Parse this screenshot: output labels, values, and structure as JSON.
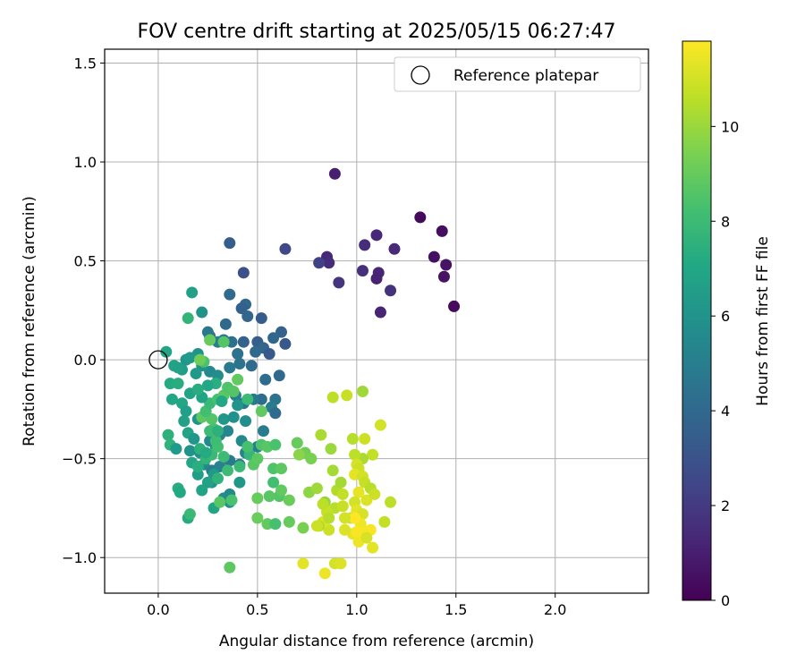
{
  "chart_data": {
    "type": "scatter",
    "title": "FOV centre drift starting at 2025/05/15 06:27:47",
    "xlabel": "Angular distance from reference (arcmin)",
    "ylabel": "Rotation from reference (arcmin)",
    "xlim": [
      -0.27,
      2.47
    ],
    "ylim": [
      -1.18,
      1.57
    ],
    "xticks": [
      0.0,
      0.5,
      1.0,
      1.5,
      2.0
    ],
    "xtick_labels": [
      "0.0",
      "0.5",
      "1.0",
      "1.5",
      "2.0"
    ],
    "yticks": [
      -1.0,
      -0.5,
      0.0,
      0.5,
      1.0,
      1.5
    ],
    "ytick_labels": [
      "−1.0",
      "−0.5",
      "0.0",
      "0.5",
      "1.0",
      "1.5"
    ],
    "grid": true,
    "legend": {
      "placement": "top-right",
      "entries": [
        {
          "label": "Reference platepar",
          "marker": "open-circle",
          "x": 0.0,
          "y": 0.0
        }
      ]
    },
    "colorbar": {
      "label": "Hours from first FF file",
      "colormap": "viridis",
      "range": [
        0,
        11.8
      ],
      "ticks": [
        0,
        2,
        4,
        6,
        8,
        10
      ],
      "tick_labels": [
        "0",
        "2",
        "4",
        "6",
        "8",
        "10"
      ]
    },
    "points": [
      [
        0.89,
        0.94,
        1.0
      ],
      [
        1.32,
        0.72,
        0.3
      ],
      [
        1.43,
        0.65,
        0.4
      ],
      [
        1.39,
        0.52,
        0.5
      ],
      [
        1.45,
        0.48,
        0.6
      ],
      [
        1.44,
        0.42,
        0.6
      ],
      [
        1.49,
        0.27,
        0.3
      ],
      [
        1.1,
        0.63,
        1.3
      ],
      [
        1.04,
        0.58,
        1.5
      ],
      [
        1.19,
        0.56,
        1.4
      ],
      [
        1.11,
        0.44,
        1.2
      ],
      [
        1.1,
        0.41,
        1.1
      ],
      [
        1.03,
        0.45,
        1.6
      ],
      [
        0.85,
        0.52,
        1.3
      ],
      [
        0.86,
        0.49,
        1.5
      ],
      [
        0.81,
        0.49,
        2.3
      ],
      [
        0.91,
        0.39,
        1.8
      ],
      [
        1.17,
        0.35,
        1.7
      ],
      [
        1.12,
        0.24,
        1.2
      ],
      [
        0.64,
        0.56,
        2.6
      ],
      [
        0.36,
        0.59,
        3.5
      ],
      [
        0.43,
        0.44,
        2.9
      ],
      [
        0.36,
        0.33,
        4.1
      ],
      [
        0.44,
        0.28,
        3.9
      ],
      [
        0.42,
        0.26,
        3.6
      ],
      [
        0.45,
        0.22,
        3.8
      ],
      [
        0.52,
        0.21,
        3.4
      ],
      [
        0.62,
        0.14,
        3.7
      ],
      [
        0.58,
        0.11,
        3.9
      ],
      [
        0.64,
        0.08,
        3.2
      ],
      [
        0.34,
        0.18,
        4.0
      ],
      [
        0.26,
        0.12,
        4.5
      ],
      [
        0.25,
        0.14,
        4.7
      ],
      [
        0.33,
        0.1,
        4.6
      ],
      [
        0.3,
        0.09,
        5.0
      ],
      [
        0.37,
        0.09,
        4.3
      ],
      [
        0.43,
        0.09,
        3.7
      ],
      [
        0.5,
        0.09,
        3.5
      ],
      [
        0.53,
        0.06,
        3.8
      ],
      [
        0.49,
        0.04,
        4.0
      ],
      [
        0.56,
        0.03,
        3.3
      ],
      [
        0.4,
        0.03,
        4.4
      ],
      [
        0.36,
        -0.04,
        4.8
      ],
      [
        0.41,
        -0.02,
        4.5
      ],
      [
        0.47,
        -0.03,
        4.1
      ],
      [
        0.54,
        -0.1,
        4.2
      ],
      [
        0.61,
        -0.08,
        4.0
      ],
      [
        0.52,
        -0.2,
        4.2
      ],
      [
        0.59,
        -0.2,
        4.5
      ],
      [
        0.48,
        -0.2,
        4.7
      ],
      [
        0.57,
        -0.24,
        4.9
      ],
      [
        0.59,
        -0.27,
        4.1
      ],
      [
        0.39,
        -0.18,
        5.0
      ],
      [
        0.43,
        -0.22,
        4.6
      ],
      [
        0.26,
        -0.06,
        5.5
      ],
      [
        0.3,
        -0.08,
        5.7
      ],
      [
        0.22,
        -0.03,
        6.0
      ],
      [
        0.19,
        -0.07,
        6.3
      ],
      [
        0.12,
        -0.05,
        6.5
      ],
      [
        0.08,
        -0.03,
        6.8
      ],
      [
        0.1,
        -0.04,
        6.7
      ],
      [
        0.14,
        0.0,
        6.2
      ],
      [
        0.2,
        0.03,
        6.0
      ],
      [
        0.16,
        0.01,
        6.4
      ],
      [
        0.04,
        0.04,
        6.9
      ],
      [
        0.17,
        0.34,
        6.7
      ],
      [
        0.22,
        0.24,
        6.0
      ],
      [
        0.15,
        0.21,
        7.7
      ],
      [
        0.06,
        -0.12,
        7.2
      ],
      [
        0.07,
        -0.2,
        7.0
      ],
      [
        0.12,
        -0.22,
        7.0
      ],
      [
        0.1,
        -0.12,
        7.3
      ],
      [
        0.16,
        -0.17,
        6.8
      ],
      [
        0.14,
        -0.26,
        6.6
      ],
      [
        0.13,
        -0.31,
        6.7
      ],
      [
        0.15,
        -0.37,
        6.9
      ],
      [
        0.05,
        -0.38,
        7.5
      ],
      [
        0.06,
        -0.43,
        7.6
      ],
      [
        0.09,
        -0.45,
        6.4
      ],
      [
        0.2,
        -0.3,
        6.0
      ],
      [
        0.18,
        -0.4,
        6.2
      ],
      [
        0.16,
        -0.46,
        6.0
      ],
      [
        0.21,
        -0.47,
        5.9
      ],
      [
        0.23,
        -0.53,
        5.6
      ],
      [
        0.27,
        -0.56,
        5.0
      ],
      [
        0.31,
        -0.54,
        5.2
      ],
      [
        0.36,
        -0.51,
        4.8
      ],
      [
        0.26,
        -0.41,
        5.5
      ],
      [
        0.31,
        -0.38,
        5.3
      ],
      [
        0.29,
        -0.44,
        6.0
      ],
      [
        0.33,
        -0.3,
        6.2
      ],
      [
        0.38,
        -0.29,
        5.9
      ],
      [
        0.4,
        -0.23,
        6.1
      ],
      [
        0.44,
        -0.31,
        5.7
      ],
      [
        0.42,
        -0.41,
        5.5
      ],
      [
        0.44,
        -0.47,
        5.2
      ],
      [
        0.5,
        -0.44,
        5.0
      ],
      [
        0.53,
        -0.36,
        4.9
      ],
      [
        0.41,
        -0.53,
        4.9
      ],
      [
        0.35,
        -0.36,
        5.4
      ],
      [
        0.27,
        -0.62,
        6.0
      ],
      [
        0.28,
        -0.58,
        6.3
      ],
      [
        0.22,
        -0.66,
        6.8
      ],
      [
        0.2,
        -0.58,
        6.5
      ],
      [
        0.17,
        -0.52,
        7.0
      ],
      [
        0.25,
        -0.62,
        6.7
      ],
      [
        0.33,
        -0.7,
        5.8
      ],
      [
        0.36,
        -0.68,
        5.5
      ],
      [
        0.36,
        -0.72,
        5.9
      ],
      [
        0.41,
        -0.62,
        6.2
      ],
      [
        0.1,
        -0.65,
        7.3
      ],
      [
        0.11,
        -0.67,
        7.1
      ],
      [
        0.15,
        -0.8,
        7.2
      ],
      [
        0.16,
        -0.78,
        7.9
      ],
      [
        0.28,
        -0.75,
        6.9
      ],
      [
        0.21,
        -0.45,
        7.5
      ],
      [
        0.24,
        -0.5,
        7.7
      ],
      [
        0.27,
        -0.48,
        7.9
      ],
      [
        0.3,
        -0.44,
        8.2
      ],
      [
        0.33,
        -0.49,
        8.0
      ],
      [
        0.3,
        -0.6,
        7.6
      ],
      [
        0.35,
        -0.56,
        8.0
      ],
      [
        0.31,
        -0.72,
        8.7
      ],
      [
        0.37,
        -0.71,
        8.4
      ],
      [
        0.41,
        -0.54,
        7.9
      ],
      [
        0.46,
        -0.48,
        7.8
      ],
      [
        0.45,
        -0.44,
        8.3
      ],
      [
        0.48,
        -0.53,
        8.7
      ],
      [
        0.5,
        -0.5,
        8.8
      ],
      [
        0.52,
        -0.43,
        8.5
      ],
      [
        0.55,
        -0.44,
        8.7
      ],
      [
        0.59,
        -0.43,
        8.4
      ],
      [
        0.58,
        -0.55,
        8.5
      ],
      [
        0.62,
        -0.55,
        8.8
      ],
      [
        0.58,
        -0.62,
        8.2
      ],
      [
        0.61,
        -0.69,
        8.6
      ],
      [
        0.62,
        -0.66,
        8.9
      ],
      [
        0.66,
        -0.71,
        9.1
      ],
      [
        0.56,
        -0.69,
        8.7
      ],
      [
        0.5,
        -0.7,
        9.0
      ],
      [
        0.5,
        -0.8,
        9.1
      ],
      [
        0.55,
        -0.83,
        8.9
      ],
      [
        0.59,
        -0.83,
        8.3
      ],
      [
        0.66,
        -0.82,
        9.0
      ],
      [
        0.22,
        -0.29,
        8.8
      ],
      [
        0.27,
        -0.3,
        8.6
      ],
      [
        0.28,
        -0.35,
        8.4
      ],
      [
        0.29,
        -0.41,
        8.1
      ],
      [
        0.26,
        -0.36,
        8.0
      ],
      [
        0.24,
        -0.26,
        8.2
      ],
      [
        0.26,
        -0.22,
        7.9
      ],
      [
        0.3,
        -0.2,
        8.3
      ],
      [
        0.33,
        -0.18,
        8.7
      ],
      [
        0.35,
        -0.14,
        8.5
      ],
      [
        0.38,
        -0.16,
        8.6
      ],
      [
        0.4,
        -0.1,
        8.9
      ],
      [
        0.45,
        -0.2,
        8.0
      ],
      [
        0.52,
        -0.26,
        8.9
      ],
      [
        0.29,
        -0.12,
        7.4
      ],
      [
        0.32,
        -0.21,
        7.1
      ],
      [
        0.25,
        -0.13,
        7.0
      ],
      [
        0.22,
        -0.19,
        6.8
      ],
      [
        0.2,
        -0.15,
        7.3
      ],
      [
        0.23,
        -0.01,
        8.4
      ],
      [
        0.21,
        0.0,
        9.2
      ],
      [
        0.26,
        0.1,
        9.0
      ],
      [
        0.33,
        0.09,
        8.6
      ],
      [
        0.3,
        -0.36,
        7.5
      ],
      [
        0.24,
        -0.47,
        7.2
      ],
      [
        0.2,
        -0.54,
        7.4
      ],
      [
        0.7,
        -0.42,
        9.0
      ],
      [
        0.74,
        -0.47,
        9.2
      ],
      [
        0.77,
        -0.5,
        9.4
      ],
      [
        0.71,
        -0.48,
        9.7
      ],
      [
        0.73,
        -0.85,
        9.4
      ],
      [
        0.76,
        -0.67,
        9.8
      ],
      [
        0.8,
        -0.65,
        10.1
      ],
      [
        0.84,
        -0.72,
        9.9
      ],
      [
        0.88,
        -0.56,
        10.2
      ],
      [
        0.82,
        -0.38,
        10.3
      ],
      [
        0.87,
        -0.45,
        10.0
      ],
      [
        0.9,
        -0.66,
        10.4
      ],
      [
        0.92,
        -0.62,
        10.2
      ],
      [
        0.93,
        -0.68,
        10.7
      ],
      [
        0.89,
        -0.75,
        10.5
      ],
      [
        0.85,
        -0.77,
        10.8
      ],
      [
        0.83,
        -0.73,
        10.6
      ],
      [
        0.86,
        -0.86,
        10.9
      ],
      [
        0.83,
        -0.82,
        11.2
      ],
      [
        0.81,
        -0.84,
        10.4
      ],
      [
        0.88,
        -0.19,
        10.6
      ],
      [
        0.95,
        -0.18,
        10.8
      ],
      [
        1.03,
        -0.16,
        10.1
      ],
      [
        0.98,
        -0.4,
        10.5
      ],
      [
        1.04,
        -0.4,
        10.9
      ],
      [
        1.12,
        -0.33,
        11.0
      ],
      [
        1.08,
        -0.48,
        10.7
      ],
      [
        1.03,
        -0.5,
        10.3
      ],
      [
        0.99,
        -0.48,
        10.6
      ],
      [
        1.0,
        -0.53,
        11.1
      ],
      [
        1.01,
        -0.55,
        10.9
      ],
      [
        0.99,
        -0.58,
        11.3
      ],
      [
        1.03,
        -0.59,
        11.0
      ],
      [
        1.04,
        -0.62,
        10.8
      ],
      [
        1.07,
        -0.65,
        10.5
      ],
      [
        1.01,
        -0.67,
        11.4
      ],
      [
        1.05,
        -0.71,
        11.2
      ],
      [
        1.09,
        -0.68,
        10.9
      ],
      [
        1.17,
        -0.72,
        10.6
      ],
      [
        0.99,
        -0.72,
        11.0
      ],
      [
        1.0,
        -0.76,
        11.3
      ],
      [
        1.03,
        -0.78,
        11.1
      ],
      [
        0.97,
        -0.8,
        10.9
      ],
      [
        1.02,
        -0.83,
        11.5
      ],
      [
        1.07,
        -0.86,
        11.7
      ],
      [
        1.03,
        -0.87,
        11.6
      ],
      [
        0.98,
        -0.88,
        11.4
      ],
      [
        0.94,
        -0.86,
        11.2
      ],
      [
        1.01,
        -0.92,
        11.5
      ],
      [
        1.14,
        -0.82,
        10.7
      ],
      [
        1.08,
        -0.95,
        11.3
      ],
      [
        0.99,
        -0.8,
        11.8
      ],
      [
        1.0,
        -0.87,
        11.7
      ],
      [
        1.05,
        -0.9,
        11.1
      ],
      [
        0.94,
        -0.8,
        11.0
      ],
      [
        0.93,
        -0.74,
        10.8
      ],
      [
        0.86,
        -0.8,
        10.5
      ],
      [
        0.8,
        -0.84,
        10.9
      ],
      [
        0.73,
        -1.03,
        11.3
      ],
      [
        0.84,
        -1.08,
        11.5
      ],
      [
        0.89,
        -1.03,
        11.0
      ],
      [
        0.92,
        -1.03,
        11.2
      ],
      [
        0.36,
        -1.05,
        8.8
      ]
    ]
  }
}
